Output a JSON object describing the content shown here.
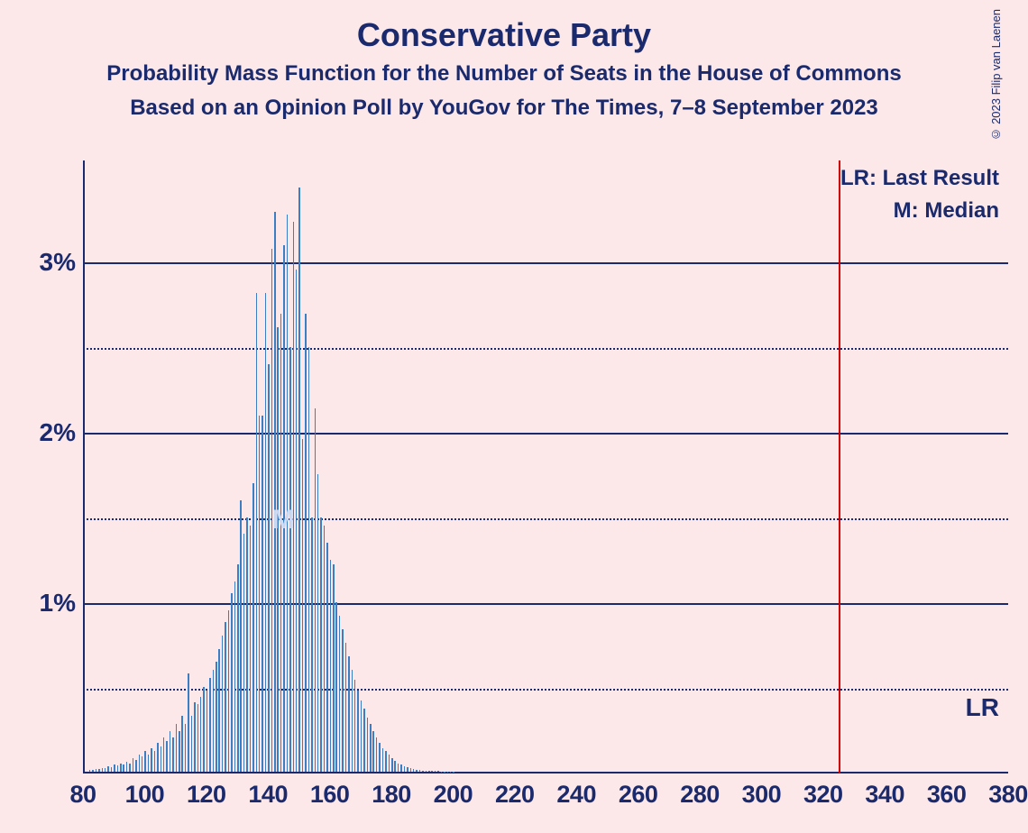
{
  "title": "Conservative Party",
  "subtitle1": "Probability Mass Function for the Number of Seats in the House of Commons",
  "subtitle2": "Based on an Opinion Poll by YouGov for The Times, 7–8 September 2023",
  "copyright": "© 2023 Filip van Laenen",
  "chart": {
    "type": "bar-pmf",
    "background_color": "#fce8e8",
    "text_color": "#1a2a6c",
    "bar_color": "#3a7fc4",
    "lr_line_color": "#d00000",
    "y_axis": {
      "min": 0,
      "max": 3.6,
      "major_ticks": [
        1,
        2,
        3
      ],
      "minor_ticks": [
        0.5,
        1.5,
        2.5
      ],
      "labels": [
        "1%",
        "2%",
        "3%"
      ]
    },
    "x_axis": {
      "min": 80,
      "max": 380,
      "ticks": [
        80,
        100,
        120,
        140,
        160,
        180,
        200,
        220,
        240,
        260,
        280,
        300,
        320,
        340,
        360,
        380
      ]
    },
    "legend": {
      "lr_text": "LR: Last Result",
      "m_text": "M: Median"
    },
    "median_x": 145,
    "median_label": "M",
    "lr_x": 325,
    "lr_label": "LR",
    "series": [
      {
        "x": 82,
        "y": 0.01
      },
      {
        "x": 83,
        "y": 0.01
      },
      {
        "x": 84,
        "y": 0.015
      },
      {
        "x": 85,
        "y": 0.015
      },
      {
        "x": 86,
        "y": 0.02
      },
      {
        "x": 87,
        "y": 0.02
      },
      {
        "x": 88,
        "y": 0.03
      },
      {
        "x": 89,
        "y": 0.025
      },
      {
        "x": 90,
        "y": 0.04
      },
      {
        "x": 91,
        "y": 0.035
      },
      {
        "x": 92,
        "y": 0.05
      },
      {
        "x": 93,
        "y": 0.04
      },
      {
        "x": 94,
        "y": 0.06
      },
      {
        "x": 95,
        "y": 0.05
      },
      {
        "x": 96,
        "y": 0.08
      },
      {
        "x": 97,
        "y": 0.07
      },
      {
        "x": 98,
        "y": 0.1
      },
      {
        "x": 99,
        "y": 0.09
      },
      {
        "x": 100,
        "y": 0.12
      },
      {
        "x": 101,
        "y": 0.1
      },
      {
        "x": 102,
        "y": 0.14
      },
      {
        "x": 103,
        "y": 0.12
      },
      {
        "x": 104,
        "y": 0.17
      },
      {
        "x": 105,
        "y": 0.15
      },
      {
        "x": 106,
        "y": 0.2
      },
      {
        "x": 107,
        "y": 0.18
      },
      {
        "x": 108,
        "y": 0.24
      },
      {
        "x": 109,
        "y": 0.2
      },
      {
        "x": 110,
        "y": 0.28
      },
      {
        "x": 111,
        "y": 0.24
      },
      {
        "x": 112,
        "y": 0.33
      },
      {
        "x": 113,
        "y": 0.28
      },
      {
        "x": 114,
        "y": 0.58
      },
      {
        "x": 115,
        "y": 0.33
      },
      {
        "x": 116,
        "y": 0.41
      },
      {
        "x": 117,
        "y": 0.4
      },
      {
        "x": 118,
        "y": 0.44
      },
      {
        "x": 119,
        "y": 0.5
      },
      {
        "x": 120,
        "y": 0.48
      },
      {
        "x": 121,
        "y": 0.55
      },
      {
        "x": 122,
        "y": 0.6
      },
      {
        "x": 123,
        "y": 0.65
      },
      {
        "x": 124,
        "y": 0.72
      },
      {
        "x": 125,
        "y": 0.8
      },
      {
        "x": 126,
        "y": 0.88
      },
      {
        "x": 127,
        "y": 0.95
      },
      {
        "x": 128,
        "y": 1.05
      },
      {
        "x": 129,
        "y": 1.12
      },
      {
        "x": 130,
        "y": 1.22
      },
      {
        "x": 131,
        "y": 1.6
      },
      {
        "x": 132,
        "y": 1.4
      },
      {
        "x": 133,
        "y": 1.5
      },
      {
        "x": 134,
        "y": 1.45
      },
      {
        "x": 135,
        "y": 1.7
      },
      {
        "x": 136,
        "y": 2.82
      },
      {
        "x": 137,
        "y": 2.1
      },
      {
        "x": 138,
        "y": 2.1
      },
      {
        "x": 139,
        "y": 2.82
      },
      {
        "x": 140,
        "y": 2.4
      },
      {
        "x": 141,
        "y": 3.08
      },
      {
        "x": 142,
        "y": 3.3
      },
      {
        "x": 143,
        "y": 2.62
      },
      {
        "x": 144,
        "y": 2.7
      },
      {
        "x": 145,
        "y": 3.1
      },
      {
        "x": 146,
        "y": 3.28
      },
      {
        "x": 147,
        "y": 2.5
      },
      {
        "x": 148,
        "y": 3.24
      },
      {
        "x": 149,
        "y": 2.96
      },
      {
        "x": 150,
        "y": 3.44
      },
      {
        "x": 151,
        "y": 1.96
      },
      {
        "x": 152,
        "y": 2.7
      },
      {
        "x": 153,
        "y": 2.5
      },
      {
        "x": 154,
        "y": 1.5
      },
      {
        "x": 155,
        "y": 2.14
      },
      {
        "x": 156,
        "y": 1.75
      },
      {
        "x": 157,
        "y": 1.5
      },
      {
        "x": 158,
        "y": 1.45
      },
      {
        "x": 159,
        "y": 1.35
      },
      {
        "x": 160,
        "y": 1.25
      },
      {
        "x": 161,
        "y": 1.22
      },
      {
        "x": 162,
        "y": 1.0
      },
      {
        "x": 163,
        "y": 0.92
      },
      {
        "x": 164,
        "y": 0.84
      },
      {
        "x": 165,
        "y": 0.76
      },
      {
        "x": 166,
        "y": 0.68
      },
      {
        "x": 167,
        "y": 0.6
      },
      {
        "x": 168,
        "y": 0.54
      },
      {
        "x": 169,
        "y": 0.48
      },
      {
        "x": 170,
        "y": 0.42
      },
      {
        "x": 171,
        "y": 0.37
      },
      {
        "x": 172,
        "y": 0.32
      },
      {
        "x": 173,
        "y": 0.28
      },
      {
        "x": 174,
        "y": 0.24
      },
      {
        "x": 175,
        "y": 0.2
      },
      {
        "x": 176,
        "y": 0.17
      },
      {
        "x": 177,
        "y": 0.14
      },
      {
        "x": 178,
        "y": 0.12
      },
      {
        "x": 179,
        "y": 0.1
      },
      {
        "x": 180,
        "y": 0.08
      },
      {
        "x": 181,
        "y": 0.065
      },
      {
        "x": 182,
        "y": 0.05
      },
      {
        "x": 183,
        "y": 0.04
      },
      {
        "x": 184,
        "y": 0.03
      },
      {
        "x": 185,
        "y": 0.025
      },
      {
        "x": 186,
        "y": 0.02
      },
      {
        "x": 187,
        "y": 0.015
      },
      {
        "x": 188,
        "y": 0.012
      },
      {
        "x": 189,
        "y": 0.01
      },
      {
        "x": 190,
        "y": 0.008
      },
      {
        "x": 191,
        "y": 0.006
      },
      {
        "x": 192,
        "y": 0.005
      },
      {
        "x": 193,
        "y": 0.004
      },
      {
        "x": 194,
        "y": 0.003
      },
      {
        "x": 195,
        "y": 0.003
      },
      {
        "x": 196,
        "y": 0.002
      },
      {
        "x": 197,
        "y": 0.002
      },
      {
        "x": 198,
        "y": 0.002
      },
      {
        "x": 199,
        "y": 0.001
      },
      {
        "x": 200,
        "y": 0.001
      }
    ]
  }
}
